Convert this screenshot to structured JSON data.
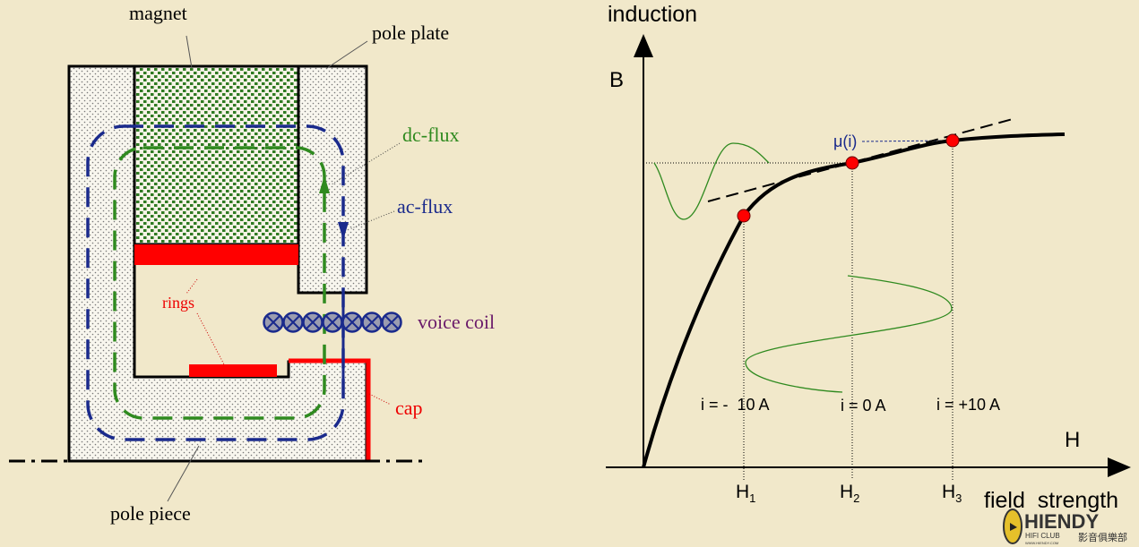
{
  "magnet_diagram": {
    "labels": {
      "magnet": "magnet",
      "pole_plate": "pole plate",
      "dc_flux": "dc-flux",
      "ac_flux": "ac-flux",
      "rings": "rings",
      "voice_coil": "voice coil",
      "cap": "cap",
      "pole_piece": "pole piece"
    },
    "colors": {
      "dc_flux": "#2f8a1f",
      "ac_flux": "#1a2a8c",
      "rings": "#ff0000",
      "voice_coil_label": "#6a1a6a"
    }
  },
  "bh_curve": {
    "y_axis_title": "induction",
    "y_axis_symbol": "B",
    "x_axis_symbol": "H",
    "x_axis_title": "field  strength",
    "permeability_label": "μ(i)",
    "ticks": [
      "H1",
      "H2",
      "H3"
    ],
    "tick_base": "H",
    "tick_subs": [
      "1",
      "2",
      "3"
    ],
    "current_labels": [
      "i = -  10 A",
      "i = 0 A",
      "i = +10 A"
    ],
    "point_color": "#ff0000"
  },
  "watermark": {
    "brand": "HIENDY",
    "sub": "HIFI CLUB",
    "site": "WWW.HIENDY.COM",
    "chinese": "影音俱樂部"
  }
}
